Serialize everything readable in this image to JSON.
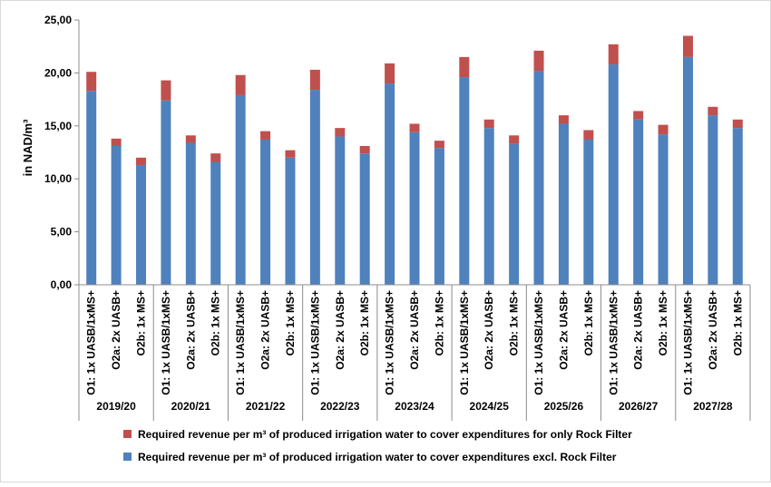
{
  "chart_data": {
    "type": "bar",
    "stacked": true,
    "ylabel": "in NAD/m³",
    "ylim": [
      0,
      25
    ],
    "yticks": [
      "0,00",
      "5,00",
      "10,00",
      "15,00",
      "20,00",
      "25,00"
    ],
    "grid": false,
    "legend_position": "bottom",
    "subcategories": [
      "O1: 1x UASB/1xMS+",
      "O2a: 2x UASB+",
      "O2b: 1x MS+"
    ],
    "groups": [
      "2019/20",
      "2020/21",
      "2021/22",
      "2022/23",
      "2023/24",
      "2024/25",
      "2025/26",
      "2026/27",
      "2027/28"
    ],
    "series": [
      {
        "name": "Required revenue per m³ of produced irrigation water to cover expenditures excl. Rock Filter",
        "color": "#4f81bd",
        "values": [
          18.3,
          13.1,
          11.3,
          17.4,
          13.4,
          11.6,
          17.9,
          13.7,
          12.0,
          18.4,
          14.0,
          12.4,
          19.0,
          14.4,
          12.9,
          19.6,
          14.8,
          13.3,
          20.2,
          15.2,
          13.7,
          20.8,
          15.6,
          14.2,
          21.5,
          16.0,
          14.8
        ]
      },
      {
        "name": "Required revenue per m³ of produced irrigation water to cover expenditures for only Rock Filter",
        "color": "#c0504d",
        "values": [
          1.8,
          0.7,
          0.7,
          1.9,
          0.7,
          0.8,
          1.9,
          0.8,
          0.7,
          1.9,
          0.8,
          0.7,
          1.9,
          0.8,
          0.7,
          1.9,
          0.8,
          0.8,
          1.9,
          0.8,
          0.9,
          1.9,
          0.8,
          0.9,
          2.0,
          0.8,
          0.8
        ]
      }
    ]
  }
}
